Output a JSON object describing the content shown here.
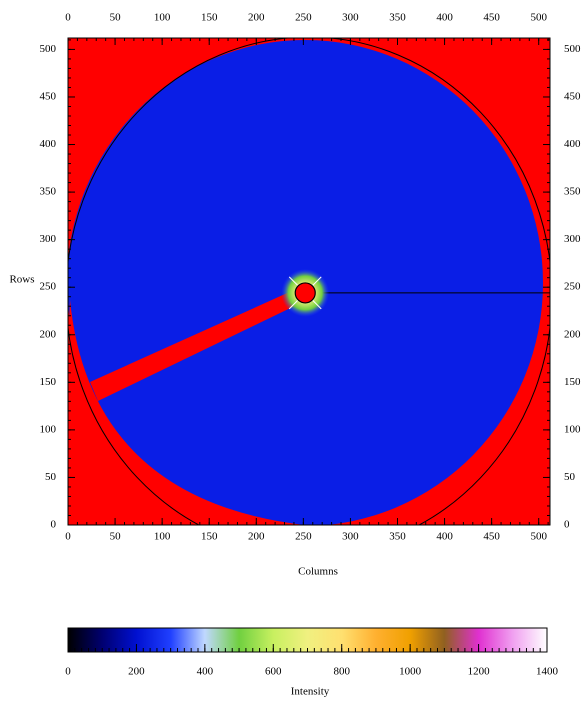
{
  "chart_data": {
    "type": "image",
    "xlabel": "Columns",
    "ylabel": "Rows",
    "xlim": [
      0,
      512
    ],
    "ylim": [
      0,
      512
    ],
    "xticks": [
      0,
      50,
      100,
      150,
      200,
      250,
      300,
      350,
      400,
      450,
      500
    ],
    "yticks": [
      0,
      50,
      100,
      150,
      200,
      250,
      300,
      350,
      400,
      450,
      500
    ],
    "background_color": "#ff0000",
    "detector_color": "#0a1ee6",
    "beam_center": [
      252,
      244
    ],
    "colorbar": {
      "label": "Intensity",
      "lim": [
        0,
        1400
      ],
      "ticks": [
        0,
        200,
        400,
        600,
        800,
        1000,
        1200,
        1400
      ],
      "colormap": [
        "#000000",
        "#000070",
        "#0010d0",
        "#2040ff",
        "#c0d8ff",
        "#70d040",
        "#c8f060",
        "#f0f080",
        "#ffe070",
        "#ffb030",
        "#f0a000",
        "#906020",
        "#e030d0",
        "#f0a0f0",
        "#ffffff"
      ]
    }
  }
}
